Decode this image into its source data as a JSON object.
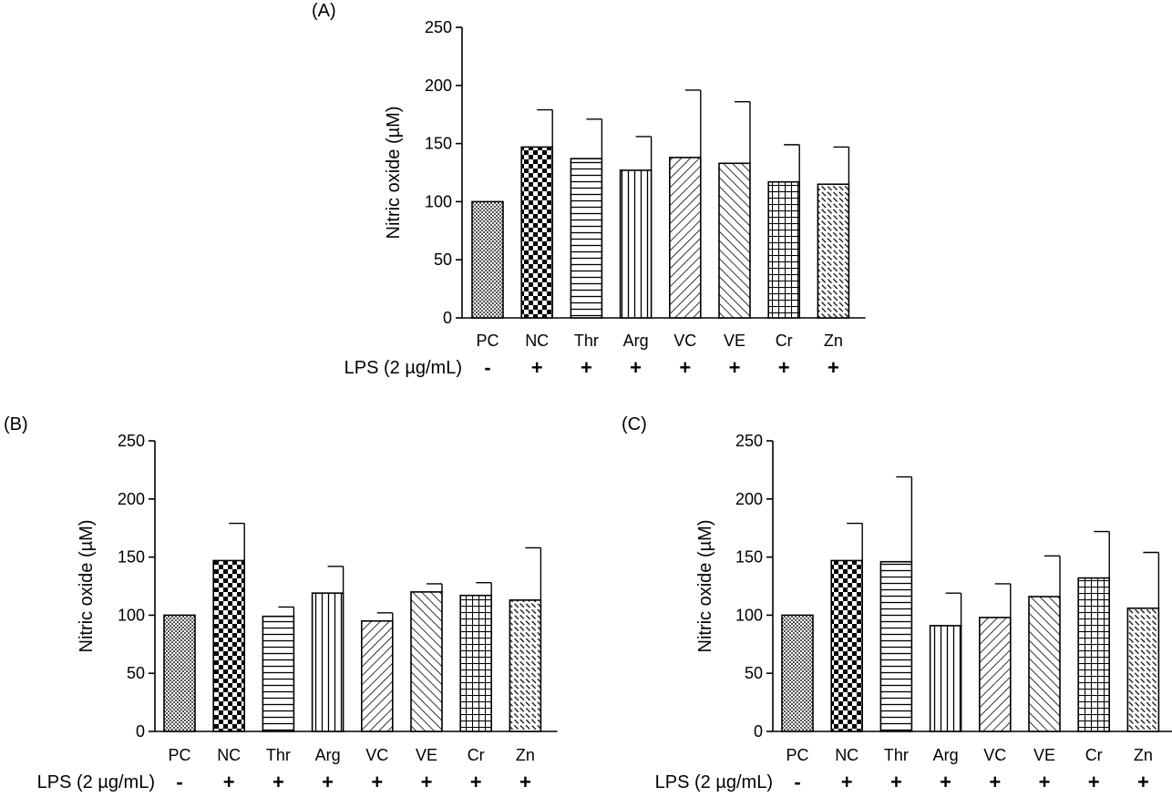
{
  "lps_label": "LPS (2 µg/mL)",
  "lps_signs": [
    "-",
    "+",
    "+",
    "+",
    "+",
    "+",
    "+",
    "+"
  ],
  "chart_data": [
    {
      "type": "bar",
      "panel": "(A)",
      "ylabel": "Nitric oxide (µM)",
      "ylim": [
        0,
        250
      ],
      "yticks": [
        0,
        50,
        100,
        150,
        200,
        250
      ],
      "categories": [
        "PC",
        "NC",
        "Thr",
        "Arg",
        "VC",
        "VE",
        "Cr",
        "Zn"
      ],
      "values": [
        100,
        147,
        137,
        127,
        138,
        133,
        117,
        115
      ],
      "errors": [
        0,
        32,
        34,
        29,
        58,
        53,
        32,
        32
      ]
    },
    {
      "type": "bar",
      "panel": "(B)",
      "ylabel": "Nitric oxide (µM)",
      "ylim": [
        0,
        250
      ],
      "yticks": [
        0,
        50,
        100,
        150,
        200,
        250
      ],
      "categories": [
        "PC",
        "NC",
        "Thr",
        "Arg",
        "VC",
        "VE",
        "Cr",
        "Zn"
      ],
      "values": [
        100,
        147,
        99,
        119,
        95,
        120,
        117,
        113
      ],
      "errors": [
        0,
        32,
        8,
        23,
        7,
        7,
        11,
        45
      ]
    },
    {
      "type": "bar",
      "panel": "(C)",
      "ylabel": "Nitric oxide (µM)",
      "ylim": [
        0,
        250
      ],
      "yticks": [
        0,
        50,
        100,
        150,
        200,
        250
      ],
      "categories": [
        "PC",
        "NC",
        "Thr",
        "Arg",
        "VC",
        "VE",
        "Cr",
        "Zn"
      ],
      "values": [
        100,
        147,
        146,
        91,
        98,
        116,
        132,
        106
      ],
      "errors": [
        0,
        32,
        73,
        28,
        29,
        35,
        40,
        48
      ]
    }
  ]
}
